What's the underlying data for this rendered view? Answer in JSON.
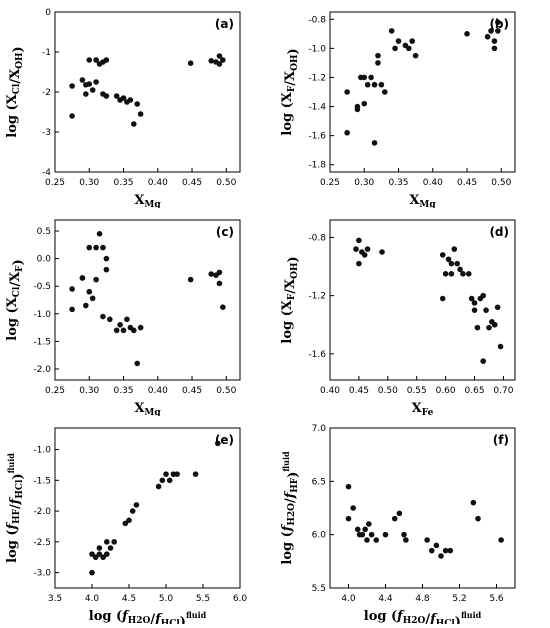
{
  "chart_data": [
    {
      "type": "scatter",
      "panel_label": "(a)",
      "xlabel": "XMg",
      "ylabel": "log (XCl/XOH)",
      "xlim": [
        0.25,
        0.52
      ],
      "ylim": [
        -4,
        0
      ],
      "xticks": [
        "0.25",
        "0.30",
        "0.35",
        "0.40",
        "0.45",
        "0.50"
      ],
      "yticks": [
        "0",
        "-1",
        "-2",
        "-3",
        "-4"
      ],
      "points": [
        [
          0.275,
          -1.85
        ],
        [
          0.275,
          -2.6
        ],
        [
          0.29,
          -1.7
        ],
        [
          0.295,
          -1.82
        ],
        [
          0.295,
          -2.05
        ],
        [
          0.3,
          -1.8
        ],
        [
          0.3,
          -1.2
        ],
        [
          0.305,
          -1.95
        ],
        [
          0.31,
          -1.75
        ],
        [
          0.31,
          -1.2
        ],
        [
          0.315,
          -1.3
        ],
        [
          0.32,
          -1.25
        ],
        [
          0.32,
          -2.05
        ],
        [
          0.325,
          -1.2
        ],
        [
          0.325,
          -2.1
        ],
        [
          0.34,
          -2.1
        ],
        [
          0.345,
          -2.2
        ],
        [
          0.35,
          -2.15
        ],
        [
          0.355,
          -2.25
        ],
        [
          0.36,
          -2.2
        ],
        [
          0.365,
          -2.8
        ],
        [
          0.37,
          -2.3
        ],
        [
          0.375,
          -2.55
        ],
        [
          0.448,
          -1.28
        ],
        [
          0.478,
          -1.22
        ],
        [
          0.485,
          -1.25
        ],
        [
          0.49,
          -1.1
        ],
        [
          0.49,
          -1.3
        ],
        [
          0.495,
          -1.2
        ]
      ]
    },
    {
      "type": "scatter",
      "panel_label": "(b)",
      "xlabel": "XMg",
      "ylabel": "log (XF/XOH)",
      "xlim": [
        0.25,
        0.52
      ],
      "ylim": [
        -1.85,
        -0.75
      ],
      "xticks": [
        "0.25",
        "0.30",
        "0.35",
        "0.40",
        "0.45",
        "0.50"
      ],
      "yticks": [
        "-0.8",
        "-1.0",
        "-1.2",
        "-1.4",
        "-1.6",
        "-1.8"
      ],
      "points": [
        [
          0.275,
          -1.58
        ],
        [
          0.275,
          -1.3
        ],
        [
          0.29,
          -1.42
        ],
        [
          0.29,
          -1.4
        ],
        [
          0.295,
          -1.2
        ],
        [
          0.3,
          -1.2
        ],
        [
          0.3,
          -1.38
        ],
        [
          0.305,
          -1.25
        ],
        [
          0.31,
          -1.2
        ],
        [
          0.315,
          -1.25
        ],
        [
          0.315,
          -1.65
        ],
        [
          0.32,
          -1.05
        ],
        [
          0.32,
          -1.1
        ],
        [
          0.325,
          -1.25
        ],
        [
          0.33,
          -1.3
        ],
        [
          0.34,
          -0.88
        ],
        [
          0.345,
          -1.0
        ],
        [
          0.35,
          -0.95
        ],
        [
          0.36,
          -0.98
        ],
        [
          0.365,
          -1.0
        ],
        [
          0.37,
          -0.95
        ],
        [
          0.375,
          -1.05
        ],
        [
          0.45,
          -0.9
        ],
        [
          0.48,
          -0.92
        ],
        [
          0.485,
          -0.88
        ],
        [
          0.49,
          -0.95
        ],
        [
          0.49,
          -1.0
        ],
        [
          0.495,
          -0.88
        ],
        [
          0.495,
          -0.82
        ]
      ]
    },
    {
      "type": "scatter",
      "panel_label": "(c)",
      "xlabel": "XMg",
      "ylabel": "log (XCl/XF)",
      "xlim": [
        0.25,
        0.52
      ],
      "ylim": [
        -2.2,
        0.7
      ],
      "xticks": [
        "0.25",
        "0.30",
        "0.35",
        "0.40",
        "0.45",
        "0.50"
      ],
      "yticks": [
        "0.5",
        "0.0",
        "-0.5",
        "-1.0",
        "-1.5",
        "-2.0"
      ],
      "points": [
        [
          0.275,
          -0.55
        ],
        [
          0.275,
          -0.92
        ],
        [
          0.29,
          -0.35
        ],
        [
          0.29,
          -0.35
        ],
        [
          0.295,
          -0.85
        ],
        [
          0.3,
          -0.6
        ],
        [
          0.3,
          0.2
        ],
        [
          0.305,
          -0.72
        ],
        [
          0.31,
          0.2
        ],
        [
          0.31,
          -0.38
        ],
        [
          0.315,
          0.45
        ],
        [
          0.32,
          0.2
        ],
        [
          0.32,
          -1.05
        ],
        [
          0.325,
          -0.0
        ],
        [
          0.325,
          -0.2
        ],
        [
          0.33,
          -1.1
        ],
        [
          0.34,
          -1.3
        ],
        [
          0.345,
          -1.2
        ],
        [
          0.35,
          -1.3
        ],
        [
          0.355,
          -1.1
        ],
        [
          0.36,
          -1.25
        ],
        [
          0.365,
          -1.3
        ],
        [
          0.37,
          -1.9
        ],
        [
          0.375,
          -1.25
        ],
        [
          0.448,
          -0.38
        ],
        [
          0.478,
          -0.28
        ],
        [
          0.485,
          -0.3
        ],
        [
          0.49,
          -0.25
        ],
        [
          0.49,
          -0.45
        ],
        [
          0.495,
          -0.88
        ]
      ]
    },
    {
      "type": "scatter",
      "panel_label": "(d)",
      "xlabel": "XFe",
      "ylabel": "log (XF/XOH)",
      "xlim": [
        0.4,
        0.72
      ],
      "ylim": [
        -1.78,
        -0.68
      ],
      "xticks": [
        "0.40",
        "0.45",
        "0.50",
        "0.55",
        "0.60",
        "0.65",
        "0.70"
      ],
      "yticks": [
        "-0.8",
        "-1.2",
        "-1.6"
      ],
      "points": [
        [
          0.445,
          -0.88
        ],
        [
          0.45,
          -0.82
        ],
        [
          0.45,
          -0.98
        ],
        [
          0.455,
          -0.9
        ],
        [
          0.46,
          -0.92
        ],
        [
          0.465,
          -0.88
        ],
        [
          0.49,
          -0.9
        ],
        [
          0.595,
          -1.22
        ],
        [
          0.595,
          -0.92
        ],
        [
          0.6,
          -1.05
        ],
        [
          0.605,
          -0.95
        ],
        [
          0.61,
          -0.98
        ],
        [
          0.61,
          -1.05
        ],
        [
          0.615,
          -0.88
        ],
        [
          0.62,
          -0.98
        ],
        [
          0.625,
          -1.02
        ],
        [
          0.63,
          -1.05
        ],
        [
          0.64,
          -1.05
        ],
        [
          0.645,
          -1.22
        ],
        [
          0.65,
          -1.3
        ],
        [
          0.65,
          -1.25
        ],
        [
          0.655,
          -1.42
        ],
        [
          0.66,
          -1.22
        ],
        [
          0.665,
          -1.2
        ],
        [
          0.665,
          -1.65
        ],
        [
          0.67,
          -1.3
        ],
        [
          0.675,
          -1.42
        ],
        [
          0.68,
          -1.38
        ],
        [
          0.685,
          -1.4
        ],
        [
          0.69,
          -1.28
        ],
        [
          0.695,
          -1.55
        ]
      ]
    },
    {
      "type": "scatter",
      "panel_label": "(e)",
      "xlabel": "log (fH2O/fHCl)fluid",
      "ylabel": "log (fHF/fHCl)fluid",
      "xlim": [
        3.5,
        6.0
      ],
      "ylim": [
        -3.25,
        -0.65
      ],
      "xticks": [
        "3.5",
        "4.0",
        "4.5",
        "5.0",
        "5.5",
        "6.0"
      ],
      "yticks": [
        "-1.0",
        "-1.5",
        "-2.0",
        "-2.5",
        "-3.0"
      ],
      "points": [
        [
          4.0,
          -2.7
        ],
        [
          4.0,
          -3.0
        ],
        [
          4.05,
          -2.75
        ],
        [
          4.1,
          -2.6
        ],
        [
          4.1,
          -2.7
        ],
        [
          4.15,
          -2.75
        ],
        [
          4.2,
          -2.5
        ],
        [
          4.2,
          -2.7
        ],
        [
          4.25,
          -2.6
        ],
        [
          4.3,
          -2.5
        ],
        [
          4.45,
          -2.2
        ],
        [
          4.5,
          -2.15
        ],
        [
          4.55,
          -2.0
        ],
        [
          4.6,
          -1.9
        ],
        [
          4.9,
          -1.6
        ],
        [
          4.95,
          -1.5
        ],
        [
          5.0,
          -1.4
        ],
        [
          5.05,
          -1.5
        ],
        [
          5.1,
          -1.4
        ],
        [
          5.15,
          -1.4
        ],
        [
          5.4,
          -1.4
        ],
        [
          5.7,
          -0.9
        ]
      ]
    },
    {
      "type": "scatter",
      "panel_label": "(f)",
      "xlabel": "log (fH2O/fHCl)fluid",
      "ylabel": "log (fH2O/fHF)fluid",
      "xlim": [
        3.8,
        5.8
      ],
      "ylim": [
        5.5,
        7.0
      ],
      "xticks": [
        "4.0",
        "4.4",
        "4.8",
        "5.2",
        "5.6"
      ],
      "yticks": [
        "7.0",
        "6.5",
        "6.0",
        "5.5"
      ],
      "points": [
        [
          4.0,
          6.45
        ],
        [
          4.0,
          6.15
        ],
        [
          4.05,
          6.25
        ],
        [
          4.1,
          6.05
        ],
        [
          4.12,
          6.0
        ],
        [
          4.15,
          6.0
        ],
        [
          4.18,
          6.05
        ],
        [
          4.2,
          5.95
        ],
        [
          4.22,
          6.1
        ],
        [
          4.25,
          6.0
        ],
        [
          4.3,
          5.95
        ],
        [
          4.4,
          6.0
        ],
        [
          4.5,
          6.15
        ],
        [
          4.55,
          6.2
        ],
        [
          4.6,
          6.0
        ],
        [
          4.62,
          5.95
        ],
        [
          4.85,
          5.95
        ],
        [
          4.9,
          5.85
        ],
        [
          4.95,
          5.9
        ],
        [
          5.0,
          5.8
        ],
        [
          5.05,
          5.85
        ],
        [
          5.1,
          5.85
        ],
        [
          5.35,
          6.3
        ],
        [
          5.4,
          6.15
        ],
        [
          5.65,
          5.95
        ]
      ]
    }
  ]
}
